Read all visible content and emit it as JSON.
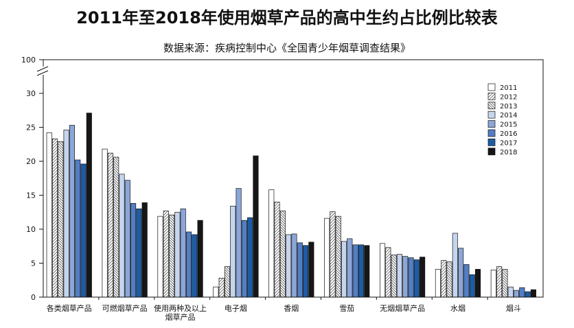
{
  "chart_data": {
    "type": "bar",
    "title": "2011年至2018年使用烟草产品的高中生约占比例比较表",
    "subtitle": "数据来源：疾病控制中心《全国青少年烟草调查结果》",
    "xlabel": "",
    "ylabel": "",
    "categories": [
      "各类烟草产品",
      "可燃烟草产品",
      "使用两种及以上烟草产品",
      "电子烟",
      "香烟",
      "雪茄",
      "无烟烟草产品",
      "水烟",
      "烟斗"
    ],
    "series": [
      {
        "name": "2011",
        "fill": "#ffffff",
        "pattern": "solid",
        "values": [
          24.2,
          21.8,
          11.9,
          1.5,
          15.8,
          11.6,
          7.9,
          4.1,
          4.0
        ]
      },
      {
        "name": "2012",
        "fill": "#ffffff",
        "pattern": "hatch-forward",
        "values": [
          23.3,
          21.2,
          12.7,
          2.8,
          14.0,
          12.6,
          7.3,
          5.4,
          4.5
        ]
      },
      {
        "name": "2013",
        "fill": "#ffffff",
        "pattern": "hatch-back",
        "values": [
          22.9,
          20.6,
          12.1,
          4.5,
          12.7,
          11.9,
          6.2,
          5.2,
          4.1
        ]
      },
      {
        "name": "2014",
        "fill": "#c6d5ee",
        "pattern": "solid",
        "values": [
          24.6,
          18.1,
          12.5,
          13.4,
          9.2,
          8.2,
          6.3,
          9.4,
          1.5
        ]
      },
      {
        "name": "2015",
        "fill": "#8ca6d8",
        "pattern": "solid",
        "values": [
          25.3,
          17.2,
          13.0,
          16.0,
          9.3,
          8.6,
          6.0,
          7.2,
          1.0
        ]
      },
      {
        "name": "2016",
        "fill": "#527ec4",
        "pattern": "solid",
        "values": [
          20.2,
          13.8,
          9.6,
          11.3,
          8.0,
          7.7,
          5.8,
          4.8,
          1.4
        ]
      },
      {
        "name": "2017",
        "fill": "#1d5ca5",
        "pattern": "solid",
        "values": [
          19.6,
          13.0,
          9.2,
          11.7,
          7.6,
          7.7,
          5.5,
          3.3,
          0.8
        ]
      },
      {
        "name": "2018",
        "fill": "#161616",
        "pattern": "solid",
        "values": [
          27.1,
          13.9,
          11.3,
          20.8,
          8.1,
          7.6,
          5.9,
          4.1,
          1.1
        ]
      }
    ],
    "yticks": [
      0,
      5,
      10,
      15,
      20,
      25,
      30,
      100
    ],
    "ylim": [
      0,
      100
    ],
    "axis_break": [
      30,
      100
    ],
    "grid": false,
    "legend_position": "top-right"
  }
}
